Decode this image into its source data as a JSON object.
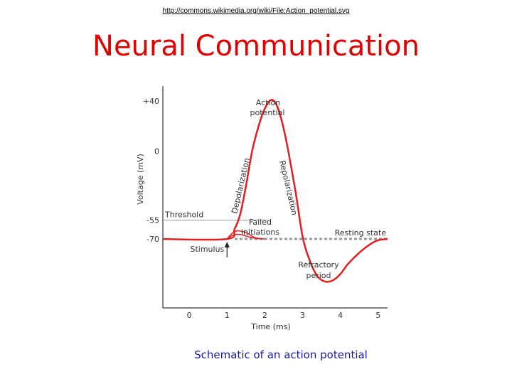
{
  "header": {
    "source_url": "http://commons.wikimedia.org/wiki/File:Action_potential.svg",
    "title": "Neural Communication"
  },
  "caption": "Schematic of an action potential",
  "chart_data": {
    "type": "line",
    "title": "",
    "xlabel": "Time (ms)",
    "ylabel": "Voltage (mV)",
    "x_ticks": [
      0,
      1,
      2,
      3,
      4,
      5
    ],
    "y_ticks": [
      {
        "value": 40,
        "label": "+40"
      },
      {
        "value": 0,
        "label": "0"
      },
      {
        "value": -55,
        "label": "-55"
      },
      {
        "value": -70,
        "label": "-70"
      }
    ],
    "xlim": [
      -0.7,
      5.25
    ],
    "ylim": [
      -125,
      52
    ],
    "grid": false,
    "color": "#e02020",
    "series": [
      {
        "x": [
          -0.7,
          1.0,
          1.2,
          1.35,
          1.5,
          1.7,
          2.0,
          2.25,
          2.5,
          2.8,
          3.0,
          3.2,
          3.4,
          3.6,
          3.8,
          4.0,
          4.2,
          4.5,
          4.8,
          5.0,
          5.25
        ],
        "y": [
          -70,
          -70,
          -62,
          -50,
          -28,
          5,
          34,
          40,
          18,
          -30,
          -68,
          -88,
          -100,
          -104,
          -103,
          -98,
          -90,
          -81,
          -74,
          -71,
          -70
        ]
      }
    ],
    "failed_initiations": [
      {
        "x": [
          1.0,
          1.15,
          1.3,
          1.5,
          1.75,
          2.0
        ],
        "y": [
          -70,
          -65,
          -63.5,
          -65,
          -69,
          -70
        ]
      },
      {
        "x": [
          1.0,
          1.15,
          1.35,
          1.6,
          1.85
        ],
        "y": [
          -70,
          -67,
          -66.5,
          -68.5,
          -70
        ]
      }
    ],
    "threshold": {
      "value": -55,
      "label": "Threshold",
      "x_end": 2.1
    },
    "resting": {
      "value": -70,
      "label": "Resting state"
    },
    "annotations": {
      "action_potential": [
        "Action",
        "potential"
      ],
      "depolarization": "Depolarization",
      "repolarization": "Repolarization",
      "failed_initiations": [
        "Failed",
        "initiations"
      ],
      "refractory_period": [
        "Refractory",
        "period"
      ],
      "stimulus": "Stimulus"
    }
  }
}
